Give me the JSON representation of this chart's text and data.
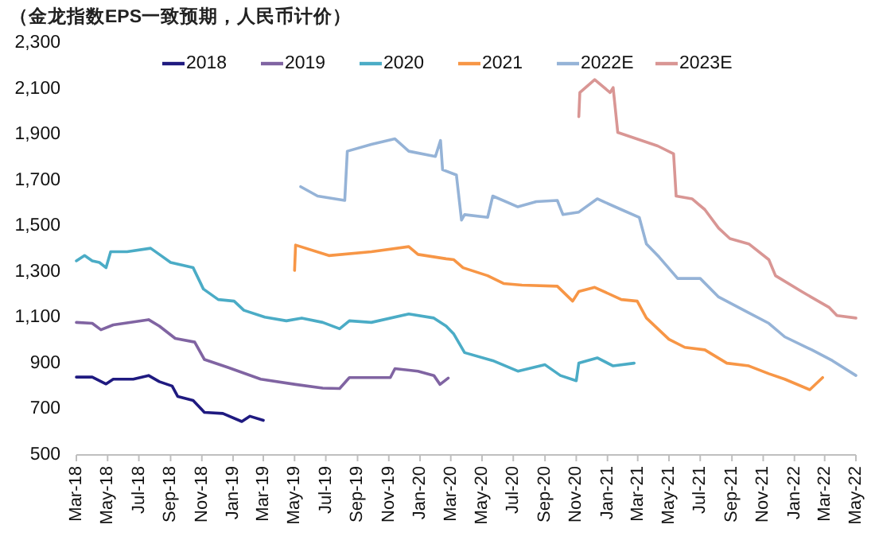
{
  "chart_data": {
    "type": "line",
    "title": "（金龙指数EPS一致预期，人民币计价）",
    "xlim": [
      "2018-03",
      "2022-05"
    ],
    "xticks": [
      {
        "value": "2018-03",
        "label": "Mar-18"
      },
      {
        "value": "2018-05",
        "label": "May-18"
      },
      {
        "value": "2018-07",
        "label": "Jul-18"
      },
      {
        "value": "2018-09",
        "label": "Sep-18"
      },
      {
        "value": "2018-11",
        "label": "Nov-18"
      },
      {
        "value": "2019-01",
        "label": "Jan-19"
      },
      {
        "value": "2019-03",
        "label": "Mar-19"
      },
      {
        "value": "2019-05",
        "label": "May-19"
      },
      {
        "value": "2019-07",
        "label": "Jul-19"
      },
      {
        "value": "2019-09",
        "label": "Sep-19"
      },
      {
        "value": "2019-11",
        "label": "Nov-19"
      },
      {
        "value": "2020-01",
        "label": "Jan-20"
      },
      {
        "value": "2020-03",
        "label": "Mar-20"
      },
      {
        "value": "2020-05",
        "label": "May-20"
      },
      {
        "value": "2020-07",
        "label": "Jul-20"
      },
      {
        "value": "2020-09",
        "label": "Sep-20"
      },
      {
        "value": "2020-11",
        "label": "Nov-20"
      },
      {
        "value": "2021-01",
        "label": "Jan-21"
      },
      {
        "value": "2021-03",
        "label": "Mar-21"
      },
      {
        "value": "2021-05",
        "label": "May-21"
      },
      {
        "value": "2021-07",
        "label": "Jul-21"
      },
      {
        "value": "2021-09",
        "label": "Sep-21"
      },
      {
        "value": "2021-11",
        "label": "Nov-21"
      },
      {
        "value": "2022-01",
        "label": "Jan-22"
      },
      {
        "value": "2022-03",
        "label": "Mar-22"
      },
      {
        "value": "2022-05",
        "label": "May-22"
      }
    ],
    "ylim": [
      500,
      2300
    ],
    "yticks": [
      {
        "value": 500,
        "label": "500"
      },
      {
        "value": 700,
        "label": "700"
      },
      {
        "value": 900,
        "label": "900"
      },
      {
        "value": 1100,
        "label": "1,100"
      },
      {
        "value": 1300,
        "label": "1,300"
      },
      {
        "value": 1500,
        "label": "1,500"
      },
      {
        "value": 1700,
        "label": "1,700"
      },
      {
        "value": 1900,
        "label": "1,900"
      },
      {
        "value": 2100,
        "label": "2,100"
      },
      {
        "value": 2300,
        "label": "2,300"
      }
    ],
    "grid": false,
    "legend": "top",
    "marker": "none",
    "line_style": "solid",
    "series": [
      {
        "name": "2018",
        "color": "#1f1a80",
        "x": [
          "2018-03-01",
          "2018-04-01",
          "2018-04-28",
          "2018-05-12",
          "2018-06-20",
          "2018-07-20",
          "2018-08-10",
          "2018-09-04",
          "2018-09-15",
          "2018-10-15",
          "2018-11-06",
          "2018-12-12",
          "2019-01-18",
          "2019-02-03",
          "2019-03-01"
        ],
        "values": [
          840,
          840,
          810,
          831,
          831,
          847,
          820,
          801,
          755,
          738,
          686,
          681,
          646,
          669,
          651
        ]
      },
      {
        "name": "2019",
        "color": "#8064a2",
        "x": [
          "2018-03-01",
          "2018-04-01",
          "2018-04-18",
          "2018-05-12",
          "2018-07-20",
          "2018-08-10",
          "2018-09-10",
          "2018-10-18",
          "2018-11-06",
          "2018-12-22",
          "2019-02-24",
          "2019-05-03",
          "2019-06-25",
          "2019-07-28",
          "2019-08-16",
          "2019-11-04",
          "2019-11-13",
          "2019-12-28",
          "2020-01-28",
          "2020-02-09",
          "2020-02-25"
        ],
        "values": [
          1079,
          1075,
          1047,
          1068,
          1091,
          1063,
          1009,
          993,
          917,
          882,
          831,
          808,
          792,
          790,
          838,
          838,
          877,
          866,
          847,
          808,
          836
        ]
      },
      {
        "name": "2020",
        "color": "#4bacc6",
        "x": [
          "2018-03-01",
          "2018-03-17",
          "2018-04-01",
          "2018-04-15",
          "2018-04-28",
          "2018-05-07",
          "2018-06-08",
          "2018-07-24",
          "2018-08-10",
          "2018-09-01",
          "2018-10-15",
          "2018-11-04",
          "2018-12-03",
          "2019-01-03",
          "2019-01-22",
          "2019-03-04",
          "2019-04-15",
          "2019-05-15",
          "2019-06-25",
          "2019-07-28",
          "2019-08-16",
          "2019-09-28",
          "2019-12-10",
          "2020-01-28",
          "2020-02-21",
          "2020-03-07",
          "2020-03-28",
          "2020-05-22",
          "2020-07-10",
          "2020-09-01",
          "2020-10-01",
          "2020-11-01",
          "2020-11-06",
          "2020-12-12",
          "2021-01-12",
          "2021-02-22"
        ],
        "values": [
          1348,
          1371,
          1348,
          1341,
          1318,
          1388,
          1388,
          1403,
          1376,
          1341,
          1318,
          1225,
          1179,
          1172,
          1132,
          1102,
          1086,
          1098,
          1079,
          1051,
          1086,
          1079,
          1116,
          1098,
          1063,
          1028,
          947,
          912,
          866,
          894,
          847,
          824,
          901,
          924,
          889,
          901
        ]
      },
      {
        "name": "2021",
        "color": "#f79646",
        "x": [
          "2019-05-01",
          "2019-05-03",
          "2019-07-07",
          "2019-09-28",
          "2019-12-10",
          "2019-12-28",
          "2020-02-21",
          "2020-03-07",
          "2020-03-25",
          "2020-05-12",
          "2020-06-12",
          "2020-07-18",
          "2020-09-25",
          "2020-10-25",
          "2020-11-06",
          "2020-12-07",
          "2021-01-28",
          "2021-02-28",
          "2021-03-18",
          "2021-05-01",
          "2021-06-01",
          "2021-07-10",
          "2021-08-22",
          "2021-10-04",
          "2021-11-12",
          "2021-12-13",
          "2022-01-31",
          "2022-02-25"
        ],
        "values": [
          1306,
          1417,
          1371,
          1388,
          1410,
          1376,
          1357,
          1353,
          1318,
          1283,
          1249,
          1242,
          1237,
          1172,
          1214,
          1232,
          1179,
          1172,
          1098,
          1005,
          970,
          959,
          901,
          889,
          855,
          831,
          785,
          838
        ]
      },
      {
        "name": "2022E",
        "color": "#95b3d7",
        "x": [
          "2019-05-13",
          "2019-06-15",
          "2019-08-07",
          "2019-08-12",
          "2019-09-28",
          "2019-11-13",
          "2019-12-10",
          "2020-01-31",
          "2020-02-10",
          "2020-02-14",
          "2020-03-12",
          "2020-03-22",
          "2020-03-28",
          "2020-05-12",
          "2020-05-22",
          "2020-07-10",
          "2020-08-15",
          "2020-09-25",
          "2020-10-06",
          "2020-11-06",
          "2020-12-12",
          "2021-01-28",
          "2021-03-04",
          "2021-03-18",
          "2021-04-12",
          "2021-05-18",
          "2021-07-01",
          "2021-08-06",
          "2021-10-04",
          "2021-11-12",
          "2021-12-13",
          "2022-02-04",
          "2022-03-16",
          "2022-05-01"
        ],
        "values": [
          1672,
          1631,
          1612,
          1827,
          1857,
          1881,
          1827,
          1804,
          1874,
          1746,
          1723,
          1526,
          1550,
          1538,
          1631,
          1584,
          1607,
          1612,
          1550,
          1561,
          1619,
          1572,
          1538,
          1422,
          1364,
          1271,
          1271,
          1190,
          1121,
          1075,
          1016,
          959,
          912,
          847
        ]
      },
      {
        "name": "2023E",
        "color": "#d99694",
        "x": [
          "2020-11-06",
          "2020-11-08",
          "2020-12-07",
          "2021-01-06",
          "2021-01-12",
          "2021-01-21",
          "2021-04-09",
          "2021-05-10",
          "2021-05-15",
          "2021-06-15",
          "2021-07-10",
          "2021-08-06",
          "2021-08-28",
          "2021-10-04",
          "2021-11-12",
          "2021-11-25",
          "2022-01-15",
          "2022-03-10",
          "2022-03-25",
          "2022-05-01"
        ],
        "values": [
          1978,
          2083,
          2140,
          2083,
          2105,
          1909,
          1850,
          1816,
          1631,
          1619,
          1572,
          1491,
          1445,
          1422,
          1353,
          1283,
          1214,
          1144,
          1109,
          1098
        ]
      }
    ]
  }
}
